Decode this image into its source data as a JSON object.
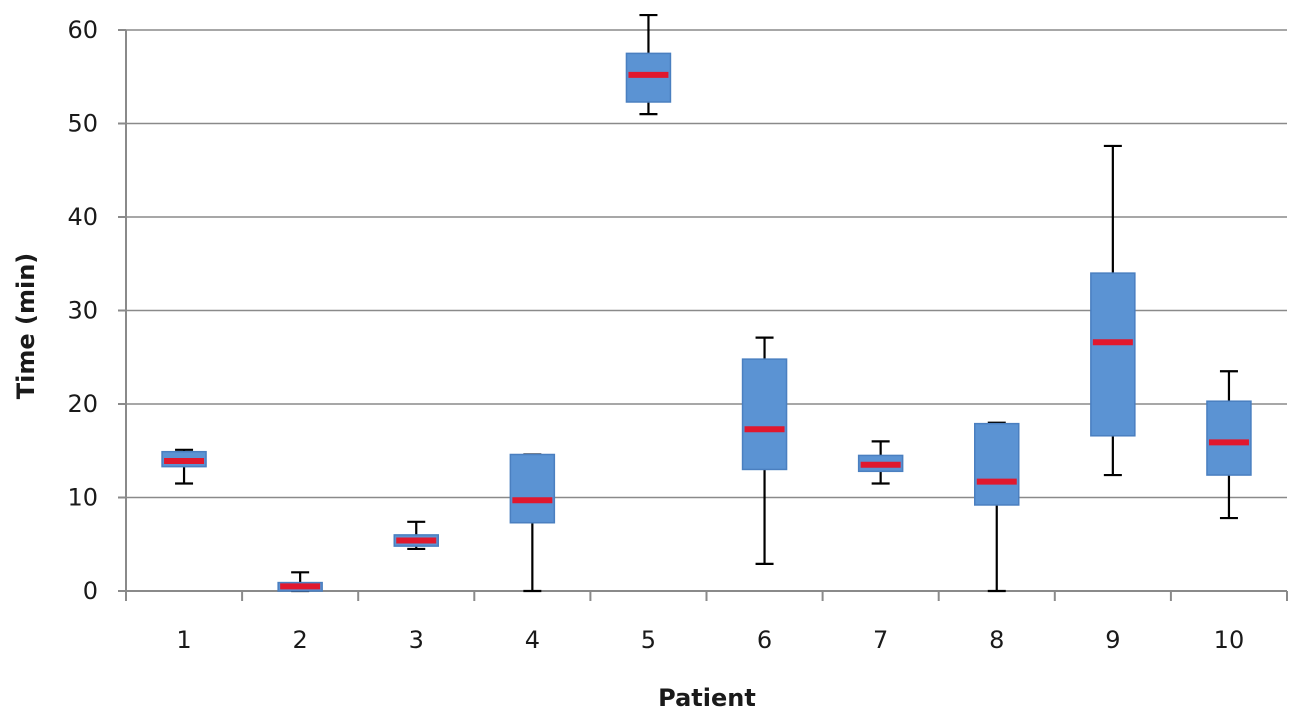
{
  "colors": {
    "box_fill": "#5b93d3",
    "box_stroke": "#4a7fc0",
    "median": "#e0182e",
    "whisker": "#000000",
    "grid": "#8a8a8a"
  },
  "chart_data": {
    "type": "boxplot",
    "title": "",
    "xlabel": "Patient",
    "ylabel": "Time (min)",
    "ylim": [
      0,
      60
    ],
    "yticks": [
      0,
      10,
      20,
      30,
      40,
      50,
      60
    ],
    "grid": true,
    "categories": [
      "1",
      "2",
      "3",
      "4",
      "5",
      "6",
      "7",
      "8",
      "9",
      "10"
    ],
    "boxes": [
      {
        "patient": "1",
        "min": 11.5,
        "q1": 13.3,
        "median": 13.9,
        "q3": 14.9,
        "max": 15.1
      },
      {
        "patient": "2",
        "min": 0.0,
        "q1": 0.0,
        "median": 0.5,
        "q3": 0.9,
        "max": 2.0
      },
      {
        "patient": "3",
        "min": 4.5,
        "q1": 4.8,
        "median": 5.4,
        "q3": 6.0,
        "max": 7.4
      },
      {
        "patient": "4",
        "min": 0.0,
        "q1": 7.3,
        "median": 9.7,
        "q3": 14.6,
        "max": 14.6
      },
      {
        "patient": "5",
        "min": 51.0,
        "q1": 52.3,
        "median": 55.2,
        "q3": 57.5,
        "max": 61.6
      },
      {
        "patient": "6",
        "min": 2.9,
        "q1": 13.0,
        "median": 17.3,
        "q3": 24.8,
        "max": 27.1
      },
      {
        "patient": "7",
        "min": 11.5,
        "q1": 12.8,
        "median": 13.5,
        "q3": 14.5,
        "max": 16.0
      },
      {
        "patient": "8",
        "min": 0.0,
        "q1": 9.2,
        "median": 11.7,
        "q3": 17.9,
        "max": 18.0
      },
      {
        "patient": "9",
        "min": 12.4,
        "q1": 16.6,
        "median": 26.6,
        "q3": 34.0,
        "max": 47.6
      },
      {
        "patient": "10",
        "min": 7.8,
        "q1": 12.4,
        "median": 15.9,
        "q3": 20.3,
        "max": 23.5
      }
    ]
  }
}
